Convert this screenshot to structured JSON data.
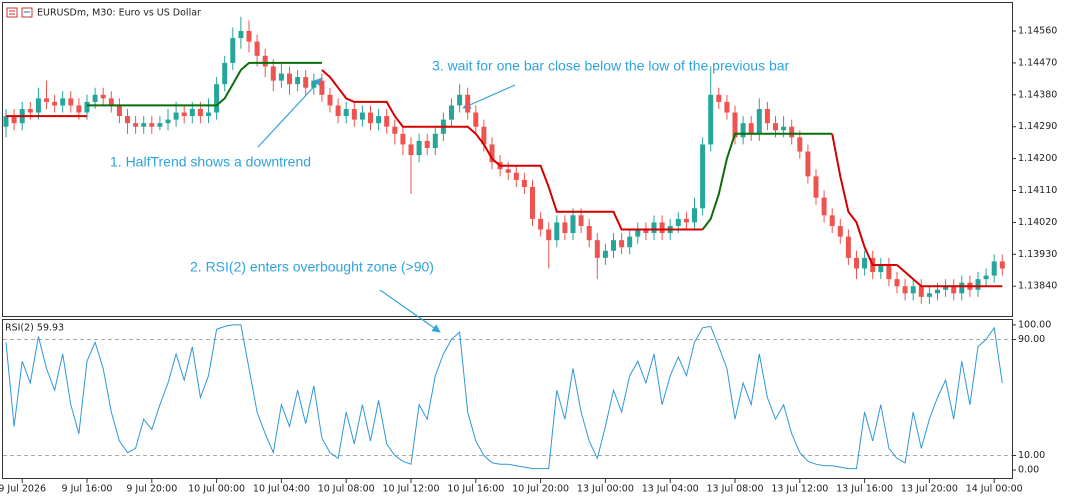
{
  "chart_data": [
    {
      "type": "candlestick",
      "title": "EURUSDm, M30:  Euro vs US Dollar",
      "annotations": [
        "3. wait for one bar close below the low of the previous bar",
        "1. HalfTrend shows a downtrend",
        "2. RSI(2) enters overbought zone (>90)"
      ],
      "bull_color": "#26a69a",
      "bear_color": "#ef5350",
      "ylim": [
        1.13756,
        1.14639
      ],
      "yticks": [
        {
          "value": 1.1456,
          "label": "1.14560"
        },
        {
          "value": 1.1447,
          "label": "1.14470"
        },
        {
          "value": 1.1438,
          "label": "1.14380"
        },
        {
          "value": 1.1429,
          "label": "1.14290"
        },
        {
          "value": 1.142,
          "label": "1.14200"
        },
        {
          "value": 1.1411,
          "label": "1.14110"
        },
        {
          "value": 1.1402,
          "label": "1.14020"
        },
        {
          "value": 1.1393,
          "label": "1.13930"
        },
        {
          "value": 1.1384,
          "label": "1.13840"
        }
      ],
      "categories": [
        null,
        null,
        "9 Jul 2026",
        null,
        null,
        null,
        null,
        null,
        null,
        null,
        "9 Jul 16:00",
        null,
        null,
        null,
        null,
        null,
        null,
        null,
        "9 Jul 20:00",
        null,
        null,
        null,
        null,
        null,
        null,
        null,
        "10 Jul 00:00",
        null,
        null,
        null,
        null,
        null,
        null,
        null,
        "10 Jul 04:00",
        null,
        null,
        null,
        null,
        null,
        null,
        null,
        "10 Jul 08:00",
        null,
        null,
        null,
        null,
        null,
        null,
        null,
        "10 Jul 12:00",
        null,
        null,
        null,
        null,
        null,
        null,
        null,
        "10 Jul 16:00",
        null,
        null,
        null,
        null,
        null,
        null,
        null,
        "10 Jul 20:00",
        null,
        null,
        null,
        null,
        null,
        null,
        null,
        "13 Jul 00:00",
        null,
        null,
        null,
        null,
        null,
        null,
        null,
        "13 Jul 04:00",
        null,
        null,
        null,
        null,
        null,
        null,
        null,
        "13 Jul 08:00",
        null,
        null,
        null,
        null,
        null,
        null,
        null,
        "13 Jul 12:00",
        null,
        null,
        null,
        null,
        null,
        null,
        null,
        "13 Jul 16:00",
        null,
        null,
        null,
        null,
        null,
        null,
        null,
        "13 Jul 20:00",
        null,
        null,
        null,
        null,
        null,
        null,
        null,
        "14 Jul 00:00",
        null
      ],
      "candles": {
        "open": [
          1.1429,
          1.1432,
          1.143,
          1.1434,
          1.1433,
          1.1437,
          1.1436,
          1.1435,
          1.1437,
          1.1435,
          1.1433,
          1.1436,
          1.1438,
          1.1437,
          1.1435,
          1.1432,
          1.143,
          1.1429,
          1.143,
          1.1429,
          1.143,
          1.1431,
          1.1433,
          1.1432,
          1.1434,
          1.1432,
          1.1433,
          1.1441,
          1.1447,
          1.1454,
          1.1456,
          1.1453,
          1.1449,
          1.1446,
          1.1442,
          1.1444,
          1.1441,
          1.1443,
          1.144,
          1.1442,
          1.1438,
          1.1435,
          1.1432,
          1.1434,
          1.1431,
          1.1433,
          1.143,
          1.1432,
          1.1429,
          1.1427,
          1.1424,
          1.1421,
          1.1425,
          1.1423,
          1.1427,
          1.1431,
          1.1435,
          1.1438,
          1.1433,
          1.1429,
          1.1424,
          1.1419,
          1.1417,
          1.1416,
          1.1414,
          1.1412,
          1.1403,
          1.14,
          1.1397,
          1.1402,
          1.1399,
          1.1404,
          1.1401,
          1.1397,
          1.1392,
          1.1394,
          1.1397,
          1.1395,
          1.1398,
          1.14,
          1.1399,
          1.1402,
          1.1399,
          1.1401,
          1.1403,
          1.1402,
          1.1406,
          1.1424,
          1.1438,
          1.1436,
          1.1433,
          1.1426,
          1.143,
          1.1427,
          1.1434,
          1.143,
          1.1428,
          1.1429,
          1.1426,
          1.1422,
          1.1415,
          1.1409,
          1.1404,
          1.1401,
          1.1398,
          1.1392,
          1.1389,
          1.1392,
          1.1388,
          1.139,
          1.1386,
          1.1384,
          1.1382,
          1.1384,
          1.1381,
          1.1382,
          1.1383,
          1.1384,
          1.1382,
          1.1385,
          1.1383,
          1.1386,
          1.1387,
          1.1391
        ],
        "high": [
          1.1434,
          1.1434,
          1.1436,
          1.1436,
          1.144,
          1.1442,
          1.1438,
          1.1439,
          1.1439,
          1.1437,
          1.1438,
          1.144,
          1.144,
          1.1439,
          1.1437,
          1.1434,
          1.1432,
          1.1432,
          1.1432,
          1.1432,
          1.1434,
          1.1436,
          1.1435,
          1.1436,
          1.1436,
          1.1437,
          1.1443,
          1.1449,
          1.1457,
          1.146,
          1.1459,
          1.1455,
          1.1451,
          1.1448,
          1.1447,
          1.1446,
          1.1445,
          1.1445,
          1.1444,
          1.1444,
          1.144,
          1.1437,
          1.1436,
          1.1436,
          1.1435,
          1.1435,
          1.1434,
          1.1434,
          1.1431,
          1.1429,
          1.1426,
          1.1427,
          1.1427,
          1.1429,
          1.1433,
          1.1437,
          1.1441,
          1.144,
          1.1435,
          1.1431,
          1.1426,
          1.1421,
          1.1419,
          1.1418,
          1.1416,
          1.1414,
          1.1405,
          1.1402,
          1.1404,
          1.1404,
          1.1406,
          1.1406,
          1.1403,
          1.1399,
          1.1396,
          1.1399,
          1.1399,
          1.14,
          1.1402,
          1.1402,
          1.1404,
          1.1404,
          1.1403,
          1.1405,
          1.1405,
          1.1409,
          1.1426,
          1.1446,
          1.144,
          1.1438,
          1.1435,
          1.1432,
          1.1432,
          1.1437,
          1.1436,
          1.1432,
          1.1432,
          1.1431,
          1.1428,
          1.1424,
          1.1417,
          1.1411,
          1.1406,
          1.1403,
          1.14,
          1.1394,
          1.1394,
          1.1394,
          1.1392,
          1.1392,
          1.1388,
          1.1386,
          1.1386,
          1.1386,
          1.1384,
          1.1385,
          1.1386,
          1.1386,
          1.1387,
          1.1387,
          1.1388,
          1.1389,
          1.1393,
          1.1393
        ],
        "low": [
          1.1426,
          1.1428,
          1.1428,
          1.1431,
          1.1431,
          1.1434,
          1.1433,
          1.1433,
          1.1433,
          1.1431,
          1.1431,
          1.1434,
          1.1435,
          1.1433,
          1.143,
          1.1427,
          1.1427,
          1.1427,
          1.1427,
          1.1428,
          1.1428,
          1.1429,
          1.143,
          1.143,
          1.143,
          1.143,
          1.1431,
          1.1439,
          1.1445,
          1.1451,
          1.145,
          1.1446,
          1.1443,
          1.1439,
          1.144,
          1.1438,
          1.1439,
          1.1438,
          1.1438,
          1.1436,
          1.1433,
          1.143,
          1.143,
          1.1429,
          1.1429,
          1.1428,
          1.1428,
          1.1427,
          1.1424,
          1.1421,
          1.141,
          1.1419,
          1.1421,
          1.1421,
          1.1425,
          1.1429,
          1.1433,
          1.1431,
          1.1427,
          1.1422,
          1.1417,
          1.1415,
          1.1414,
          1.1412,
          1.141,
          1.1401,
          1.1398,
          1.1389,
          1.1395,
          1.1397,
          1.1397,
          1.1399,
          1.1395,
          1.1386,
          1.139,
          1.1392,
          1.1393,
          1.1393,
          1.1396,
          1.1397,
          1.1397,
          1.1397,
          1.1397,
          1.1399,
          1.14,
          1.14,
          1.1404,
          1.1422,
          1.1434,
          1.1431,
          1.1424,
          1.1424,
          1.1425,
          1.1425,
          1.1428,
          1.1426,
          1.1426,
          1.1424,
          1.142,
          1.1413,
          1.1407,
          1.1402,
          1.1399,
          1.1396,
          1.139,
          1.1386,
          1.1387,
          1.1386,
          1.1386,
          1.1384,
          1.1382,
          1.138,
          1.138,
          1.1379,
          1.1379,
          1.138,
          1.1381,
          1.138,
          1.138,
          1.1381,
          1.1381,
          1.1384,
          1.1385,
          1.1387
        ],
        "close": [
          1.1432,
          1.143,
          1.1434,
          1.1433,
          1.1437,
          1.1436,
          1.1435,
          1.1437,
          1.1435,
          1.1433,
          1.1436,
          1.1438,
          1.1437,
          1.1435,
          1.1432,
          1.143,
          1.1429,
          1.143,
          1.1429,
          1.143,
          1.1431,
          1.1433,
          1.1432,
          1.1434,
          1.1432,
          1.1433,
          1.1441,
          1.1447,
          1.1454,
          1.1456,
          1.1453,
          1.1449,
          1.1446,
          1.1442,
          1.1444,
          1.1441,
          1.1443,
          1.144,
          1.1442,
          1.1438,
          1.1435,
          1.1432,
          1.1434,
          1.1431,
          1.1433,
          1.143,
          1.1432,
          1.1429,
          1.1427,
          1.1424,
          1.1421,
          1.1425,
          1.1423,
          1.1427,
          1.1431,
          1.1435,
          1.1438,
          1.1433,
          1.1429,
          1.1424,
          1.1419,
          1.1417,
          1.1416,
          1.1414,
          1.1412,
          1.1403,
          1.14,
          1.1397,
          1.1402,
          1.1399,
          1.1404,
          1.1401,
          1.1397,
          1.1392,
          1.1394,
          1.1397,
          1.1395,
          1.1398,
          1.14,
          1.1399,
          1.1402,
          1.1399,
          1.1401,
          1.1403,
          1.1402,
          1.1406,
          1.1424,
          1.1438,
          1.1436,
          1.1433,
          1.1426,
          1.143,
          1.1427,
          1.1434,
          1.143,
          1.1428,
          1.1429,
          1.1426,
          1.1422,
          1.1415,
          1.1409,
          1.1404,
          1.1401,
          1.1398,
          1.1392,
          1.1389,
          1.1392,
          1.1388,
          1.139,
          1.1386,
          1.1384,
          1.1382,
          1.1384,
          1.1381,
          1.1382,
          1.1383,
          1.1384,
          1.1382,
          1.1385,
          1.1383,
          1.1386,
          1.1387,
          1.1391,
          1.1389
        ]
      },
      "series": [
        {
          "color": "#0a6e0a",
          "values": [
            null,
            null,
            null,
            null,
            null,
            null,
            null,
            null,
            null,
            null,
            1.1435,
            1.1435,
            1.1435,
            1.1435,
            1.1435,
            1.1435,
            1.1435,
            1.1435,
            1.1435,
            1.1435,
            1.1435,
            1.1435,
            1.1435,
            1.1435,
            1.1435,
            1.1435,
            1.1435,
            1.1437,
            1.1441,
            1.1445,
            1.1447,
            1.1447,
            1.1447,
            1.1447,
            1.1447,
            1.1447,
            1.1447,
            1.1447,
            1.1447,
            1.1447,
            null,
            null,
            null,
            null,
            null,
            null,
            null,
            null,
            null,
            null,
            null,
            null,
            null,
            null,
            null,
            null,
            null,
            null,
            null,
            null,
            null,
            null,
            null,
            null,
            null,
            null,
            null,
            null,
            null,
            null,
            null,
            null,
            null,
            null,
            null,
            null,
            null,
            null,
            null,
            null,
            null,
            null,
            null,
            null,
            null,
            null,
            1.14,
            1.1403,
            1.141,
            1.142,
            1.1427,
            1.1427,
            1.1427,
            1.1427,
            1.1427,
            1.1427,
            1.1427,
            1.1427,
            1.1427,
            1.1427,
            1.1427,
            1.1427,
            1.1427,
            null,
            null,
            null,
            null,
            null,
            null,
            null,
            null,
            null,
            null,
            null,
            null,
            null,
            null,
            null,
            null,
            null,
            null,
            null,
            null,
            null
          ]
        },
        {
          "color": "#d40000",
          "values": [
            1.1432,
            1.1432,
            1.1432,
            1.1432,
            1.1432,
            1.1432,
            1.1432,
            1.1432,
            1.1432,
            1.1432,
            1.1432,
            null,
            null,
            null,
            null,
            null,
            null,
            null,
            null,
            null,
            null,
            null,
            null,
            null,
            null,
            null,
            null,
            null,
            null,
            null,
            null,
            null,
            null,
            null,
            null,
            null,
            null,
            null,
            null,
            1.1445,
            1.1443,
            1.144,
            1.1437,
            1.1436,
            1.1436,
            1.1436,
            1.1436,
            1.1436,
            1.1432,
            1.1429,
            1.1429,
            1.1429,
            1.1429,
            1.1429,
            1.1429,
            1.1429,
            1.1429,
            1.1429,
            1.1427,
            1.1424,
            1.142,
            1.1418,
            1.1418,
            1.1418,
            1.1418,
            1.1418,
            1.1418,
            1.1412,
            1.1405,
            1.1405,
            1.1405,
            1.1405,
            1.1405,
            1.1405,
            1.1405,
            1.1405,
            1.14,
            1.14,
            1.14,
            1.14,
            1.14,
            1.14,
            1.14,
            1.14,
            1.14,
            1.14,
            1.14,
            null,
            null,
            null,
            null,
            null,
            null,
            null,
            null,
            null,
            null,
            null,
            null,
            null,
            null,
            null,
            1.1427,
            1.1415,
            1.1405,
            1.1402,
            1.1395,
            1.139,
            1.139,
            1.139,
            1.139,
            1.1388,
            1.1386,
            1.1384,
            1.1384,
            1.1384,
            1.1384,
            1.1384,
            1.1384,
            1.1384,
            1.1384,
            1.1384,
            1.1384,
            1.1384
          ]
        }
      ]
    },
    {
      "type": "line",
      "title": "RSI(2) 59.93",
      "color": "#2f97da",
      "ylim": [
        -5.5,
        103.4
      ],
      "yticks": [
        {
          "value": 100,
          "label": "100.00"
        },
        {
          "value": 90,
          "label": "90.00"
        },
        {
          "value": 10,
          "label": "10.00"
        },
        {
          "value": 0,
          "label": "0.00"
        }
      ],
      "levels": [
        90,
        10
      ],
      "values": [
        88,
        30,
        75,
        60,
        92,
        70,
        55,
        80,
        45,
        25,
        75,
        88,
        70,
        40,
        20,
        12,
        15,
        35,
        28,
        45,
        60,
        80,
        62,
        85,
        50,
        65,
        97,
        99,
        100,
        100,
        70,
        40,
        25,
        12,
        45,
        30,
        55,
        32,
        58,
        22,
        12,
        8,
        40,
        18,
        45,
        20,
        48,
        18,
        10,
        6,
        4,
        45,
        35,
        65,
        80,
        90,
        95,
        40,
        20,
        10,
        5,
        4,
        4,
        3,
        2,
        1,
        1,
        1,
        55,
        35,
        70,
        40,
        20,
        8,
        30,
        55,
        40,
        65,
        75,
        60,
        80,
        45,
        65,
        78,
        65,
        88,
        98,
        99,
        85,
        70,
        35,
        60,
        45,
        80,
        50,
        35,
        45,
        25,
        12,
        6,
        4,
        3,
        3,
        2,
        1,
        1,
        40,
        20,
        45,
        15,
        8,
        5,
        40,
        15,
        35,
        50,
        62,
        35,
        75,
        45,
        85,
        90,
        98,
        59.93
      ]
    }
  ]
}
